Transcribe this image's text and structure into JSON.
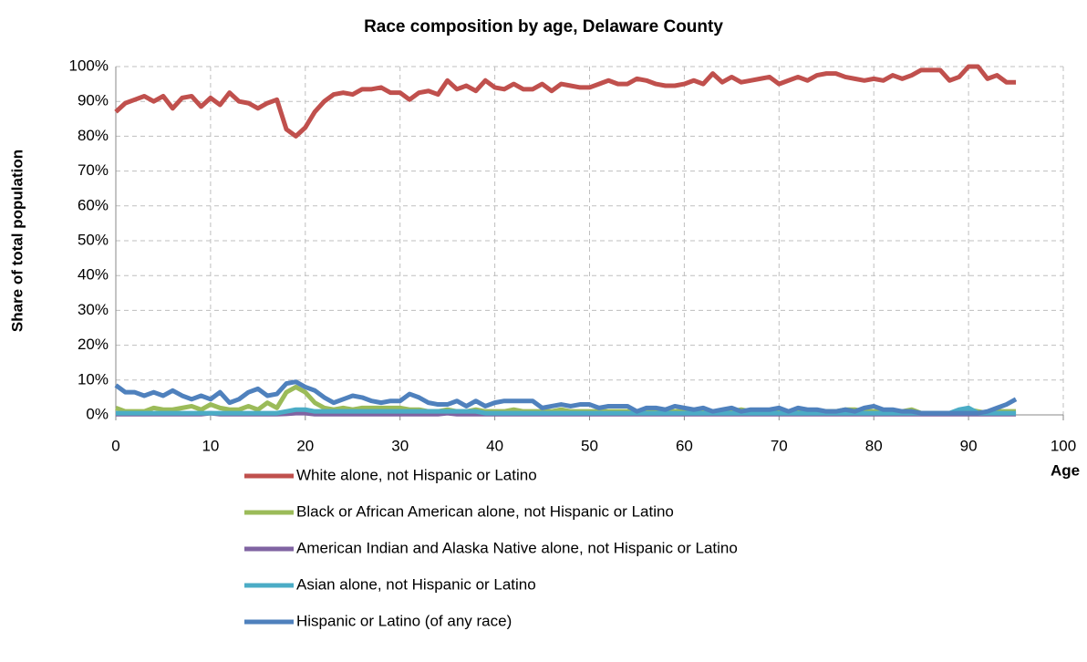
{
  "chart_data": {
    "type": "line",
    "title": "Race composition by age, Delaware County",
    "x_label": "Age",
    "y_label": "Share of total population",
    "x": [
      0,
      1,
      2,
      3,
      4,
      5,
      6,
      7,
      8,
      9,
      10,
      11,
      12,
      13,
      14,
      15,
      16,
      17,
      18,
      19,
      20,
      21,
      22,
      23,
      24,
      25,
      26,
      27,
      28,
      29,
      30,
      31,
      32,
      33,
      34,
      35,
      36,
      37,
      38,
      39,
      40,
      41,
      42,
      43,
      44,
      45,
      46,
      47,
      48,
      49,
      50,
      51,
      52,
      53,
      54,
      55,
      56,
      57,
      58,
      59,
      60,
      61,
      62,
      63,
      64,
      65,
      66,
      67,
      68,
      69,
      70,
      71,
      72,
      73,
      74,
      75,
      76,
      77,
      78,
      79,
      80,
      81,
      82,
      83,
      84,
      85,
      86,
      87,
      88,
      89,
      90,
      91,
      92,
      93,
      94,
      95
    ],
    "series": [
      {
        "name": "White alone, not Hispanic or Latino",
        "color": "#c0504d",
        "values": [
          87,
          89.5,
          90.5,
          91.5,
          90,
          91.5,
          88,
          91,
          91.5,
          88.5,
          91,
          89,
          92.5,
          90,
          89.5,
          88,
          89.5,
          90.5,
          82,
          80,
          82.5,
          87,
          90,
          92,
          92.5,
          92,
          93.5,
          93.5,
          94,
          92.5,
          92.5,
          90.5,
          92.5,
          93,
          92,
          96,
          93.5,
          94.5,
          93,
          96,
          94,
          93.5,
          95,
          93.5,
          93.5,
          95,
          93,
          95,
          94.5,
          94,
          94,
          95,
          96,
          95,
          95,
          96.5,
          96,
          95,
          94.5,
          94.5,
          95,
          96,
          95,
          98,
          95.5,
          97,
          95.5,
          96,
          96.5,
          97,
          95,
          96,
          97,
          96,
          97.5,
          98,
          98,
          97,
          96.5,
          96,
          96.5,
          96,
          97.5,
          96.5,
          97.5,
          99,
          99,
          99,
          96,
          97,
          100,
          100,
          96.5,
          97.5,
          95.5,
          95.5
        ]
      },
      {
        "name": "Black or African American alone, not Hispanic or Latino",
        "color": "#9bbb59",
        "values": [
          2,
          1,
          1,
          1,
          2,
          1.5,
          1.5,
          2,
          2.5,
          1.5,
          3,
          2,
          1.5,
          1.5,
          2.5,
          1.5,
          3.5,
          2,
          6.5,
          8,
          6.5,
          3.5,
          2,
          1.5,
          2,
          1.5,
          2,
          2,
          2,
          2,
          2,
          1.5,
          1.5,
          1,
          1,
          1.5,
          1,
          1,
          1.5,
          1,
          1,
          1,
          1.5,
          1,
          1,
          1,
          1,
          1.5,
          1,
          1,
          1,
          1,
          1,
          1,
          1,
          1,
          1,
          1,
          1,
          1,
          1,
          1,
          1,
          1,
          1,
          1,
          1.5,
          1,
          1,
          1,
          1,
          1,
          1,
          1,
          1,
          1,
          1,
          1.5,
          1.5,
          1,
          1,
          1,
          1,
          1,
          1.5,
          0.5,
          0.5,
          0.5,
          0.5,
          1,
          1.5,
          1,
          0.5,
          1,
          1,
          1
        ]
      },
      {
        "name": "American Indian and Alaska Native alone, not Hispanic or Latino",
        "color": "#8064a2",
        "values": [
          0.2,
          0.2,
          0.2,
          0.2,
          0.2,
          0.2,
          0.2,
          0.2,
          0.2,
          0.2,
          0.5,
          0.2,
          0.2,
          0.2,
          0.2,
          0.2,
          0.2,
          0.2,
          0.3,
          0.5,
          0.5,
          0.2,
          0.2,
          0.2,
          0.2,
          0.2,
          0.2,
          0.2,
          0.2,
          0.2,
          0.2,
          0.2,
          0.2,
          0.2,
          0.2,
          0.5,
          0.2,
          0.2,
          0.2,
          0.2,
          0.2,
          0.2,
          0.2,
          0.2,
          0.2,
          0.2,
          0.2,
          0.2,
          0.2,
          0.2,
          0.2,
          0.2,
          0.2,
          0.2,
          0.2,
          0.2,
          0.2,
          0.2,
          0.2,
          0.2,
          0.2,
          0.2,
          0.2,
          0.2,
          0.2,
          0.2,
          0.2,
          0.2,
          0.2,
          0.2,
          0.2,
          0.2,
          0.2,
          0.2,
          0.2,
          0.2,
          0.2,
          0.2,
          0.2,
          0.2,
          0.2,
          0.2,
          0.2,
          0.2,
          0.2,
          0.2,
          0.2,
          0.2,
          0.2,
          0.2,
          0.2,
          0.2,
          0.2,
          0.2,
          0.2,
          0.2
        ]
      },
      {
        "name": "Asian alone, not Hispanic or Latino",
        "color": "#4bacc6",
        "values": [
          0.5,
          0.5,
          0.5,
          0.5,
          0.5,
          0.5,
          0.5,
          0.5,
          0.5,
          0.5,
          0.5,
          0.5,
          0.5,
          0.5,
          0.5,
          0.5,
          0.5,
          0.5,
          1,
          1.5,
          1.5,
          1,
          1,
          1,
          1,
          1,
          1,
          1,
          1,
          1,
          1,
          1,
          1,
          1,
          1,
          1,
          1,
          1,
          1,
          0.5,
          0.5,
          0.5,
          0.5,
          0.5,
          0.5,
          0.5,
          0.5,
          0.5,
          0.5,
          0.5,
          0.5,
          0.5,
          0.5,
          0.5,
          0.5,
          0.5,
          0.5,
          0.5,
          0.5,
          0.5,
          0.5,
          0.5,
          0.5,
          0.5,
          0.5,
          0.5,
          0.5,
          0.5,
          0.5,
          0.5,
          0.5,
          0.5,
          0.5,
          0.5,
          0.5,
          0.5,
          0.5,
          0.5,
          0.5,
          0.5,
          0.5,
          0.5,
          0.5,
          0.5,
          0.5,
          0.5,
          0.5,
          0.5,
          0.5,
          1.5,
          2,
          0.5,
          0.5,
          0.5,
          0.5,
          0.5
        ]
      },
      {
        "name": "Hispanic or Latino (of any race)",
        "color": "#4f81bd",
        "values": [
          8.5,
          6.5,
          6.5,
          5.5,
          6.5,
          5.5,
          7,
          5.5,
          4.5,
          5.5,
          4.5,
          6.5,
          3.5,
          4.5,
          6.5,
          7.5,
          5.5,
          6,
          9,
          9.5,
          8,
          7,
          5,
          3.5,
          4.5,
          5.5,
          5,
          4,
          3.5,
          4,
          4,
          6,
          5,
          3.5,
          3,
          3,
          4,
          2.5,
          4,
          2.5,
          3.5,
          4,
          4,
          4,
          4,
          2,
          2.5,
          3,
          2.5,
          3,
          3,
          2,
          2.5,
          2.5,
          2.5,
          1,
          2,
          2,
          1.5,
          2.5,
          2,
          1.5,
          2,
          1,
          1.5,
          2,
          1,
          1.5,
          1.5,
          1.5,
          2,
          1,
          2,
          1.5,
          1.5,
          1,
          1,
          1.5,
          1,
          2,
          2.5,
          1.5,
          1.5,
          1,
          1,
          0.5,
          0.5,
          0.5,
          0.5,
          0.5,
          0.5,
          0.5,
          1,
          2,
          3,
          4.5
        ]
      }
    ],
    "xlim": [
      0,
      100
    ],
    "xticks": [
      0,
      10,
      20,
      30,
      40,
      50,
      60,
      70,
      80,
      90,
      100
    ],
    "ylim": [
      0,
      100
    ],
    "yticks": [
      {
        "value": 0,
        "label": "0%"
      },
      {
        "value": 10,
        "label": "10%"
      },
      {
        "value": 20,
        "label": "20%"
      },
      {
        "value": 30,
        "label": "30%"
      },
      {
        "value": 40,
        "label": "40%"
      },
      {
        "value": 50,
        "label": "50%"
      },
      {
        "value": 60,
        "label": "60%"
      },
      {
        "value": 70,
        "label": "70%"
      },
      {
        "value": 80,
        "label": "80%"
      },
      {
        "value": 90,
        "label": "90%"
      },
      {
        "value": 100,
        "label": "100%"
      }
    ],
    "grid": true
  }
}
